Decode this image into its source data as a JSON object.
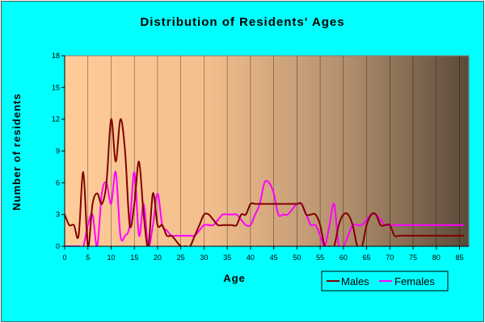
{
  "chart_data": {
    "type": "line",
    "title": "Distribution of Residents' Ages",
    "xlabel": "Age",
    "ylabel": "Number of residents",
    "xlim": [
      0,
      87
    ],
    "ylim": [
      0,
      18
    ],
    "xticks": [
      "0",
      "5",
      "10",
      "15",
      "20",
      "25",
      "30",
      "35",
      "40",
      "45",
      "50",
      "55",
      "60",
      "65",
      "70",
      "75",
      "80",
      "85"
    ],
    "yticks": [
      "0",
      "3",
      "6",
      "9",
      "12",
      "15",
      "18"
    ],
    "grid": "vertical",
    "legend_position": "bottom-right",
    "colors": {
      "background": "#00ffff",
      "plot_light": "#ffcc99",
      "plot_dark": "#5a4a3a",
      "Males": "#800000",
      "Females": "#ff00ff"
    },
    "series": [
      {
        "name": "Males",
        "x": [
          0,
          1,
          2,
          3,
          4,
          5,
          6,
          7,
          8,
          9,
          10,
          11,
          12,
          13,
          14,
          15,
          16,
          17,
          18,
          19,
          20,
          21,
          22,
          23,
          24,
          25,
          26,
          27,
          28,
          29,
          30,
          31,
          32,
          33,
          34,
          35,
          36,
          37,
          38,
          39,
          40,
          41,
          42,
          43,
          44,
          45,
          46,
          47,
          48,
          49,
          50,
          51,
          52,
          53,
          54,
          55,
          56,
          57,
          58,
          59,
          60,
          61,
          62,
          63,
          64,
          65,
          66,
          67,
          68,
          69,
          70,
          71,
          72,
          73,
          74,
          75,
          76,
          77,
          78,
          79,
          80,
          81,
          82,
          83,
          84,
          85,
          86
        ],
        "values": [
          3,
          2,
          2,
          1,
          7,
          0,
          4,
          5,
          4,
          6,
          12,
          8,
          12,
          9,
          2,
          4,
          8,
          3,
          0,
          5,
          2,
          2,
          1,
          1,
          0.5,
          0,
          0,
          0,
          1,
          2,
          3,
          3,
          2.5,
          2,
          2,
          2,
          2,
          2,
          3,
          3,
          4,
          4,
          4,
          4,
          4,
          4,
          4,
          4,
          4,
          4,
          4,
          4,
          3,
          3,
          3,
          2,
          0,
          0,
          0,
          2,
          3,
          3,
          2,
          0,
          0,
          2,
          3,
          3,
          2,
          2,
          2,
          1,
          1,
          1,
          1,
          1,
          1,
          1,
          1,
          1,
          1,
          1,
          1,
          1,
          1,
          1,
          1
        ]
      },
      {
        "name": "Females",
        "x": [
          0,
          1,
          2,
          3,
          4,
          5,
          6,
          7,
          8,
          9,
          10,
          11,
          12,
          13,
          14,
          15,
          16,
          17,
          18,
          19,
          20,
          21,
          22,
          23,
          24,
          25,
          26,
          27,
          28,
          29,
          30,
          31,
          32,
          33,
          34,
          35,
          36,
          37,
          38,
          39,
          40,
          41,
          42,
          43,
          44,
          45,
          46,
          47,
          48,
          49,
          50,
          51,
          52,
          53,
          54,
          55,
          56,
          57,
          58,
          59,
          60,
          61,
          62,
          63,
          64,
          65,
          66,
          67,
          68,
          69,
          70,
          71,
          72,
          73,
          74,
          75,
          76,
          77,
          78,
          79,
          80,
          81,
          82,
          83,
          84,
          85,
          86
        ],
        "values": [
          0,
          0,
          0,
          0,
          0,
          2,
          3,
          0,
          5,
          6,
          4,
          7,
          1,
          1,
          2,
          7,
          1,
          4,
          0,
          2,
          5,
          2,
          1.5,
          1,
          1,
          1,
          1,
          1,
          1,
          1.5,
          2,
          2,
          2,
          2.5,
          3,
          3,
          3,
          3,
          2.5,
          2,
          2,
          3,
          4,
          6,
          6,
          5,
          3,
          3,
          3,
          3.5,
          4,
          4,
          3,
          2,
          2,
          1,
          0,
          2,
          4,
          0,
          0,
          1,
          2,
          2,
          2,
          2.5,
          3,
          3,
          2.5,
          2,
          2,
          2,
          2,
          2,
          2,
          2,
          2,
          2,
          2,
          2,
          2,
          2,
          2,
          2,
          2,
          2,
          2
        ]
      }
    ]
  }
}
